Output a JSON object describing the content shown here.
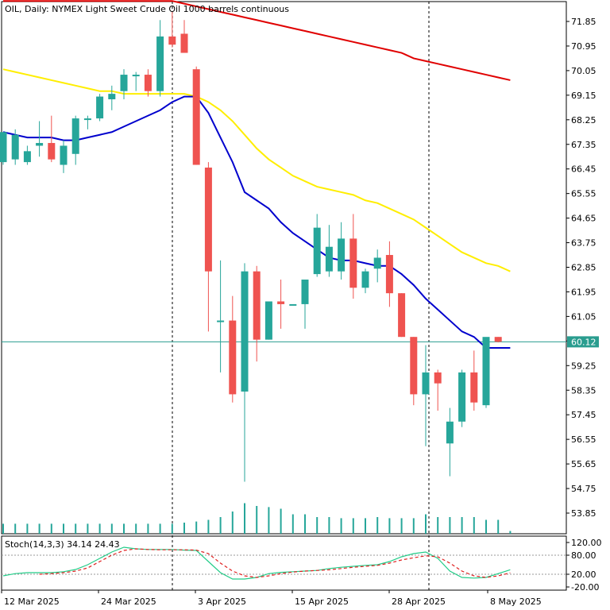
{
  "title": "OIL, Daily:  NYMEX Light Sweet Crude Oil 1000 barrels continuous",
  "stoch_label": "Stoch(14,3,3) 34.14 24.43",
  "price_label": "60.12",
  "colors": {
    "bull": "#26a69a",
    "bear": "#ef5350",
    "ma_fast": "#0000cd",
    "ma_mid": "#ffee00",
    "ma_slow": "#e00000",
    "stoch_main": "#22cc88",
    "stoch_signal": "#e02020",
    "price_line": "#2a9d8f",
    "volume": "#26a69a"
  },
  "chart_data": [
    {
      "type": "candlestick",
      "symbol": "OIL",
      "timeframe": "Daily",
      "ylim": [
        53.0,
        72.7
      ],
      "y_ticks": [
        "71.85",
        "70.95",
        "70.05",
        "69.15",
        "68.25",
        "67.35",
        "66.45",
        "65.55",
        "64.65",
        "63.75",
        "62.85",
        "61.95",
        "61.05",
        "60.15",
        "59.25",
        "58.35",
        "57.45",
        "56.55",
        "55.65",
        "54.75",
        "53.85"
      ],
      "x_ticks": [
        "12 Mar 2025",
        "24 Mar 2025",
        "3 Apr 2025",
        "15 Apr 2025",
        "28 Apr 2025",
        "8 May 2025"
      ],
      "current_price": 60.12,
      "candles": [
        {
          "o": 66.7,
          "h": 67.8,
          "l": 66.6,
          "c": 67.8
        },
        {
          "o": 66.8,
          "h": 67.9,
          "l": 66.6,
          "c": 67.7
        },
        {
          "o": 66.7,
          "h": 67.3,
          "l": 66.6,
          "c": 67.1
        },
        {
          "o": 67.3,
          "h": 68.2,
          "l": 66.9,
          "c": 67.4
        },
        {
          "o": 67.4,
          "h": 68.4,
          "l": 66.7,
          "c": 66.8
        },
        {
          "o": 66.6,
          "h": 67.5,
          "l": 66.3,
          "c": 67.3
        },
        {
          "o": 67.0,
          "h": 68.4,
          "l": 66.6,
          "c": 68.3
        },
        {
          "o": 68.3,
          "h": 68.4,
          "l": 67.9,
          "c": 68.3
        },
        {
          "o": 68.3,
          "h": 69.2,
          "l": 68.2,
          "c": 69.1
        },
        {
          "o": 69.0,
          "h": 69.5,
          "l": 68.6,
          "c": 69.2
        },
        {
          "o": 69.3,
          "h": 70.1,
          "l": 69.0,
          "c": 69.9
        },
        {
          "o": 69.9,
          "h": 70.0,
          "l": 69.3,
          "c": 69.9
        },
        {
          "o": 69.9,
          "h": 70.1,
          "l": 69.1,
          "c": 69.3
        },
        {
          "o": 69.3,
          "h": 71.9,
          "l": 69.1,
          "c": 71.3
        },
        {
          "o": 71.3,
          "h": 72.2,
          "l": 70.9,
          "c": 71.0
        },
        {
          "o": 71.4,
          "h": 71.9,
          "l": 70.7,
          "c": 70.7
        },
        {
          "o": 70.1,
          "h": 70.2,
          "l": 66.6,
          "c": 66.6
        },
        {
          "o": 66.5,
          "h": 66.7,
          "l": 60.5,
          "c": 62.7
        },
        {
          "o": 60.9,
          "h": 63.1,
          "l": 59.0,
          "c": 60.9
        },
        {
          "o": 60.9,
          "h": 61.8,
          "l": 57.9,
          "c": 58.2
        },
        {
          "o": 58.3,
          "h": 63.0,
          "l": 55.0,
          "c": 62.7
        },
        {
          "o": 62.7,
          "h": 62.9,
          "l": 59.4,
          "c": 60.2
        },
        {
          "o": 60.2,
          "h": 61.6,
          "l": 60.2,
          "c": 61.6
        },
        {
          "o": 61.6,
          "h": 62.4,
          "l": 60.6,
          "c": 61.5
        },
        {
          "o": 61.5,
          "h": 61.5,
          "l": 61.5,
          "c": 61.5
        },
        {
          "o": 61.5,
          "h": 62.4,
          "l": 60.6,
          "c": 62.4
        },
        {
          "o": 62.6,
          "h": 64.8,
          "l": 62.5,
          "c": 64.3
        },
        {
          "o": 62.7,
          "h": 64.4,
          "l": 62.5,
          "c": 63.6
        },
        {
          "o": 62.7,
          "h": 64.5,
          "l": 62.4,
          "c": 63.9
        },
        {
          "o": 63.9,
          "h": 64.8,
          "l": 61.7,
          "c": 62.1
        },
        {
          "o": 62.1,
          "h": 62.8,
          "l": 61.9,
          "c": 62.7
        },
        {
          "o": 62.8,
          "h": 63.5,
          "l": 62.3,
          "c": 63.2
        },
        {
          "o": 63.3,
          "h": 63.8,
          "l": 61.4,
          "c": 61.9
        },
        {
          "o": 61.9,
          "h": 61.9,
          "l": 60.3,
          "c": 60.3
        },
        {
          "o": 60.3,
          "h": 60.3,
          "l": 57.8,
          "c": 58.2
        },
        {
          "o": 58.2,
          "h": 60.0,
          "l": 56.3,
          "c": 59.0
        },
        {
          "o": 59.0,
          "h": 59.1,
          "l": 57.6,
          "c": 58.6
        },
        {
          "o": 56.4,
          "h": 57.7,
          "l": 55.2,
          "c": 57.2
        },
        {
          "o": 57.2,
          "h": 59.1,
          "l": 57.0,
          "c": 59.0
        },
        {
          "o": 59.0,
          "h": 59.8,
          "l": 57.6,
          "c": 57.9
        },
        {
          "o": 57.8,
          "h": 60.2,
          "l": 57.7,
          "c": 60.3
        },
        {
          "o": 60.3,
          "h": 60.3,
          "l": 60.1,
          "c": 60.12
        }
      ],
      "ma_fast": [
        67.8,
        67.7,
        67.6,
        67.6,
        67.6,
        67.5,
        67.5,
        67.6,
        67.7,
        67.8,
        68.0,
        68.2,
        68.4,
        68.6,
        68.9,
        69.1,
        69.1,
        68.5,
        67.6,
        66.7,
        65.6,
        65.3,
        65.0,
        64.5,
        64.1,
        63.8,
        63.5,
        63.2,
        63.1,
        63.1,
        63.0,
        62.9,
        62.9,
        62.6,
        62.2,
        61.7,
        61.3,
        60.9,
        60.5,
        60.3,
        59.9,
        59.9,
        59.9
      ],
      "ma_mid": [
        70.1,
        70.0,
        69.9,
        69.8,
        69.7,
        69.6,
        69.5,
        69.4,
        69.3,
        69.3,
        69.2,
        69.2,
        69.2,
        69.2,
        69.2,
        69.2,
        69.1,
        68.9,
        68.6,
        68.2,
        67.7,
        67.2,
        66.8,
        66.5,
        66.2,
        66.0,
        65.8,
        65.7,
        65.6,
        65.5,
        65.3,
        65.2,
        65.0,
        64.8,
        64.6,
        64.3,
        64.0,
        63.7,
        63.4,
        63.2,
        63.0,
        62.9,
        62.7
      ],
      "ma_slow": [
        72.6,
        72.6,
        72.6,
        72.6,
        72.6,
        72.6,
        72.6,
        72.6,
        72.6,
        72.6,
        72.6,
        72.6,
        72.6,
        72.6,
        72.6,
        72.5,
        72.4,
        72.3,
        72.2,
        72.1,
        72.0,
        71.9,
        71.8,
        71.7,
        71.6,
        71.5,
        71.4,
        71.3,
        71.2,
        71.1,
        71.0,
        70.9,
        70.8,
        70.7,
        70.5,
        70.4,
        70.3,
        70.2,
        70.1,
        70.0,
        69.9,
        69.8,
        69.7
      ],
      "volume": [
        0.18,
        0.18,
        0.18,
        0.18,
        0.18,
        0.18,
        0.18,
        0.18,
        0.18,
        0.18,
        0.18,
        0.18,
        0.18,
        0.18,
        0.18,
        0.2,
        0.22,
        0.25,
        0.3,
        0.4,
        0.55,
        0.5,
        0.48,
        0.45,
        0.35,
        0.35,
        0.3,
        0.3,
        0.28,
        0.28,
        0.28,
        0.3,
        0.28,
        0.28,
        0.28,
        0.35,
        0.3,
        0.3,
        0.3,
        0.3,
        0.25,
        0.25,
        0.05
      ]
    },
    {
      "type": "line",
      "title": "Stoch(14,3,3)",
      "ylim": [
        -20,
        120
      ],
      "y_ticks": [
        "120.00",
        "80.00",
        "20.00",
        "-20.00"
      ],
      "series": [
        {
          "name": "main",
          "values": [
            15,
            22,
            25,
            25,
            25,
            28,
            35,
            50,
            70,
            90,
            105,
            100,
            98,
            98,
            98,
            96,
            95,
            60,
            25,
            5,
            5,
            10,
            22,
            26,
            28,
            30,
            32,
            38,
            42,
            45,
            48,
            50,
            60,
            75,
            85,
            90,
            70,
            30,
            10,
            8,
            10,
            22,
            34.14
          ]
        },
        {
          "name": "signal",
          "values": [
            null,
            null,
            null,
            20,
            22,
            25,
            30,
            40,
            60,
            80,
            95,
            100,
            98,
            97,
            97,
            97,
            96,
            85,
            55,
            30,
            15,
            10,
            15,
            22,
            27,
            30,
            32,
            34,
            38,
            42,
            45,
            48,
            55,
            65,
            72,
            78,
            75,
            55,
            30,
            15,
            10,
            15,
            24.43
          ]
        }
      ]
    }
  ]
}
